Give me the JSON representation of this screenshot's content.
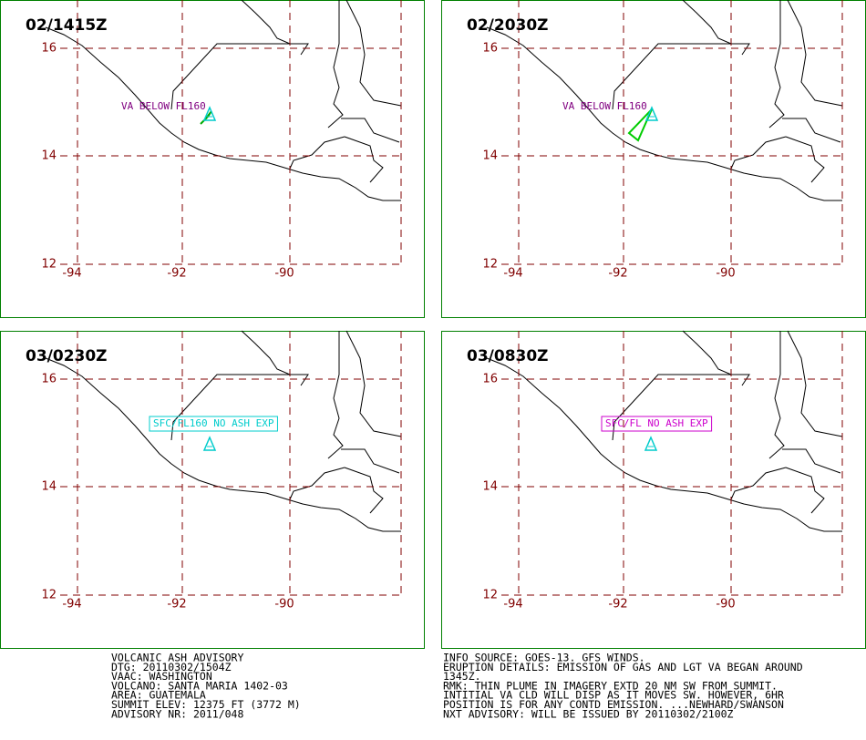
{
  "panels": [
    {
      "time": "02/1415Z",
      "annotation": "VA BELOW FL160"
    },
    {
      "time": "02/2030Z",
      "annotation": "VA BELOW FL160"
    },
    {
      "time": "03/0230Z",
      "annotation": "SFC/FL160 NO ASH EXP"
    },
    {
      "time": "03/0830Z",
      "annotation": "SFC/FL NO ASH EXP"
    }
  ],
  "map": {
    "lat_labels": [
      16,
      14,
      12
    ],
    "lon_labels": [
      -94,
      -92,
      -90
    ]
  },
  "advisory": {
    "left": [
      "VOLCANIC ASH ADVISORY",
      "DTG: 20110302/1504Z",
      "VAAC: WASHINGTON",
      "VOLCANO: SANTA MARIA 1402-03",
      "AREA: GUATEMALA",
      "SUMMIT ELEV: 12375 FT (3772 M)",
      "ADVISORY NR: 2011/048"
    ],
    "right": [
      "INFO SOURCE: GOES-13. GFS WINDS.",
      "ERUPTION DETAILS: EMISSION OF GAS AND LGT VA BEGAN AROUND",
      "1345Z.",
      "RMK: THIN PLUME IN IMAGERY EXTD 20 NM SW FROM SUMMIT.",
      "INTITIAL VA CLD WILL DISP AS IT MOVES SW. HOWEVER, 6HR",
      "POSITION IS FOR ANY CONTD EMISSION. ...NEWHARD/SWANSON",
      "NXT ADVISORY: WILL BE ISSUED BY 20110302/2100Z"
    ]
  }
}
